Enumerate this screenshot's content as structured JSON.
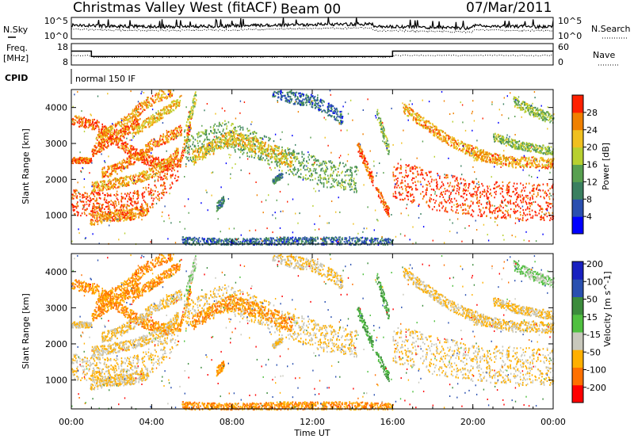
{
  "header": {
    "title": "Christmas Valley West (fitACF)",
    "beam": "Beam 00",
    "date": "07/Mar/2011"
  },
  "noise_panel": {
    "left_label": "N.Sky",
    "right_label": "N.Search",
    "left_ticks": [
      "10^5",
      "10^0"
    ],
    "right_ticks": [
      "10^5",
      "10^0"
    ]
  },
  "freq_panel": {
    "left_label_line1": "Freq.",
    "left_label_line2": "[MHz]",
    "right_label": "Nave",
    "left_ticks": [
      "18",
      "8"
    ],
    "right_ticks": [
      "60",
      "0"
    ]
  },
  "cpid_panel": {
    "label": "CPID",
    "program": "normal 150 IF"
  },
  "colors": {
    "power": [
      "#0000ff",
      "#2a4fb0",
      "#3a8060",
      "#58a050",
      "#b8d030",
      "#f0c020",
      "#f08000",
      "#ff2000"
    ],
    "velocity": [
      "#ff0000",
      "#ff7000",
      "#ffb000",
      "#c8c8bc",
      "#50c040",
      "#3c8c3c",
      "#2a50b0",
      "#1820c0"
    ]
  },
  "chart_data": [
    {
      "type": "heatmap",
      "name": "power",
      "ylabel": "Slant Range [km]",
      "yticks": [
        1000,
        2000,
        3000,
        4000
      ],
      "ylim": [
        200,
        4500
      ],
      "colorbar_label": "Power [dB]",
      "colorbar_ticks": [
        "4",
        "8",
        "12",
        "16",
        "20",
        "24",
        "28"
      ],
      "clim": [
        0,
        32
      ]
    },
    {
      "type": "heatmap",
      "name": "velocity",
      "ylabel": "Slant Range [km]",
      "yticks": [
        1000,
        2000,
        3000,
        4000
      ],
      "ylim": [
        200,
        4500
      ],
      "colorbar_label": "Velocity [m s^-1]",
      "colorbar_ticks": [
        "-200",
        "-100",
        "-50",
        "-15",
        "15",
        "50",
        "100",
        "200"
      ]
    }
  ],
  "time_axis": {
    "xlabel": "Time UT",
    "ticks": [
      "00:00",
      "04:00",
      "08:00",
      "12:00",
      "16:00",
      "20:00",
      "00:00"
    ],
    "xlim_hours": [
      0,
      24
    ]
  },
  "scatter_layers": {
    "bands": [
      {
        "t": [
          0.0,
          0.6,
          1.2,
          1.8,
          2.4,
          3.0,
          3.6,
          4.2,
          4.8,
          5.4,
          6.0
        ],
        "r": [
          3700,
          3600,
          3550,
          3300,
          3000,
          2800,
          2600,
          2500,
          2400,
          2500,
          3700
        ],
        "w": 150,
        "p": 28,
        "v": -50
      },
      {
        "t": [
          1.2,
          1.8,
          2.4,
          3.0,
          3.6,
          4.2,
          5.0
        ],
        "r": [
          3100,
          3300,
          3500,
          3800,
          4100,
          4300,
          4500
        ],
        "w": 160,
        "p": 24,
        "v": -50
      },
      {
        "t": [
          1.0,
          1.6,
          2.2,
          2.8,
          3.4
        ],
        "r": [
          2800,
          3000,
          3200,
          3400,
          3700
        ],
        "w": 150,
        "p": 27,
        "v": -50
      },
      {
        "t": [
          0.0,
          1.0
        ],
        "r": [
          2550,
          2550
        ],
        "w": 80,
        "p": 28,
        "v": -15
      },
      {
        "t": [
          1.5,
          2.2,
          2.8,
          3.4,
          4.0,
          4.8,
          5.5
        ],
        "r": [
          2200,
          2300,
          2500,
          2700,
          3000,
          3200,
          3400
        ],
        "w": 150,
        "p": 26,
        "v": -15
      },
      {
        "t": [
          3.0,
          3.8,
          4.6,
          5.4
        ],
        "r": [
          3300,
          3600,
          3900,
          4200
        ],
        "w": 140,
        "p": 22,
        "v": -50
      },
      {
        "t": [
          1.0,
          2.0,
          3.0,
          4.0,
          4.8,
          5.3
        ],
        "r": [
          1800,
          1900,
          2000,
          2200,
          2500,
          2800
        ],
        "w": 140,
        "p": 24,
        "v": -15
      },
      {
        "t": [
          0.0,
          1.0,
          2.0,
          3.0,
          3.8,
          4.5,
          5.3
        ],
        "r": [
          1400,
          1300,
          1250,
          1300,
          1500,
          1900,
          2400
        ],
        "w": 380,
        "p": 29,
        "v": -15
      },
      {
        "t": [
          0.9,
          2.0,
          3.0,
          3.8
        ],
        "r": [
          900,
          1000,
          1050,
          1200
        ],
        "w": 160,
        "p": 25,
        "v": -15
      },
      {
        "t": [
          5.6,
          6.2
        ],
        "r": [
          3200,
          4400
        ],
        "w": 200,
        "p": 18,
        "v": 15
      },
      {
        "t": [
          5.6,
          6.5,
          7.5,
          8.5,
          9.5,
          10.5,
          11.5,
          12.5,
          13.5,
          14.2
        ],
        "r": [
          2800,
          3000,
          3300,
          3100,
          2900,
          2600,
          2400,
          2200,
          2100,
          2000
        ],
        "w": 380,
        "p": 14,
        "v": -15
      },
      {
        "t": [
          6.0,
          7.0,
          8.0,
          9.0,
          10.0,
          11.0
        ],
        "r": [
          2600,
          2900,
          3200,
          3000,
          2800,
          2500
        ],
        "w": 200,
        "p": 22,
        "v": -50
      },
      {
        "t": [
          7.2,
          7.6
        ],
        "r": [
          1250,
          1450
        ],
        "w": 120,
        "p": 10,
        "v": -50
      },
      {
        "t": [
          10.0,
          10.5
        ],
        "r": [
          1950,
          2150
        ],
        "w": 80,
        "p": 10,
        "v": -15
      },
      {
        "t": [
          10.0,
          11.0,
          12.0,
          13.0,
          13.5
        ],
        "r": [
          4500,
          4300,
          4200,
          3900,
          3700
        ],
        "w": 180,
        "p": 8,
        "v": -15
      },
      {
        "t": [
          14.2,
          14.6,
          15.0,
          15.4,
          15.8
        ],
        "r": [
          3000,
          2500,
          2000,
          1500,
          1100
        ],
        "w": 160,
        "p": 28,
        "v": 50
      },
      {
        "t": [
          15.2,
          15.8
        ],
        "r": [
          3900,
          2800
        ],
        "w": 180,
        "p": 16,
        "v": 50
      },
      {
        "t": [
          16.0,
          17.0,
          18.0,
          19.0,
          20.0,
          21.0,
          22.0,
          23.0,
          24.0
        ],
        "r": [
          2000,
          1900,
          1700,
          1600,
          1500,
          1450,
          1400,
          1400,
          1400
        ],
        "w": 520,
        "p": 30,
        "v": -15
      },
      {
        "t": [
          16.5,
          17.5,
          18.5,
          19.5,
          20.5
        ],
        "r": [
          4000,
          3600,
          3200,
          2900,
          2700
        ],
        "w": 150,
        "p": 24,
        "v": -15
      },
      {
        "t": [
          20.0,
          21.0,
          22.0,
          23.0,
          24.0
        ],
        "r": [
          2700,
          2600,
          2500,
          2500,
          2450
        ],
        "w": 150,
        "p": 24,
        "v": -15
      },
      {
        "t": [
          21.0,
          22.0,
          23.0,
          24.0
        ],
        "r": [
          3200,
          3000,
          2900,
          2800
        ],
        "w": 120,
        "p": 16,
        "v": -15
      },
      {
        "t": [
          22.0,
          23.0,
          24.0
        ],
        "r": [
          4200,
          3900,
          3700
        ],
        "w": 140,
        "p": 16,
        "v": 15
      },
      {
        "t": [
          5.5,
          8.0,
          11.0,
          14.0,
          16.0
        ],
        "r": [
          300,
          250,
          300,
          300,
          250
        ],
        "w": 120,
        "p": 8,
        "v": -50
      }
    ],
    "freq_steps": [
      {
        "t": 0.0,
        "mhz": 14.5
      },
      {
        "t": 1.0,
        "mhz": 12.0
      },
      {
        "t": 16.0,
        "mhz": 14.5
      },
      {
        "t": 24.0,
        "mhz": 14.5
      }
    ]
  }
}
